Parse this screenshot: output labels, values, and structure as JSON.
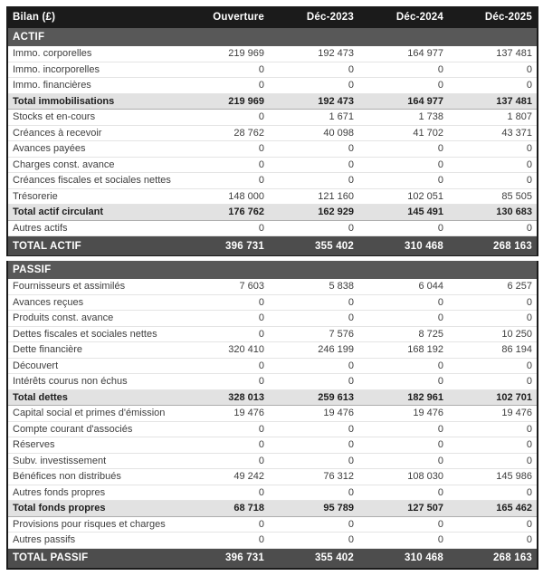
{
  "colors": {
    "header_bg": "#1b1b1b",
    "section_bg": "#585858",
    "grand_total_bg": "#4d4d4d",
    "subtotal_bg": "#e2e2e2",
    "row_text": "#3e3e3e",
    "outer_border": "#1b1b1b"
  },
  "table": {
    "title": "Bilan (£)",
    "columns": [
      "Ouverture",
      "Déc-2023",
      "Déc-2024",
      "Déc-2025"
    ],
    "sections": [
      {
        "title": "ACTIF",
        "rows": [
          {
            "label": "Immo. corporelles",
            "values": [
              "219 969",
              "192 473",
              "164 977",
              "137 481"
            ],
            "style": "normal"
          },
          {
            "label": "Immo. incorporelles",
            "values": [
              "0",
              "0",
              "0",
              "0"
            ],
            "style": "normal"
          },
          {
            "label": "Immo. financières",
            "values": [
              "0",
              "0",
              "0",
              "0"
            ],
            "style": "normal"
          },
          {
            "label": "Total immobilisations",
            "values": [
              "219 969",
              "192 473",
              "164 977",
              "137 481"
            ],
            "style": "subtotal"
          },
          {
            "label": "Stocks et en-cours",
            "values": [
              "0",
              "1 671",
              "1 738",
              "1 807"
            ],
            "style": "normal"
          },
          {
            "label": "Créances à recevoir",
            "values": [
              "28 762",
              "40 098",
              "41 702",
              "43 371"
            ],
            "style": "normal"
          },
          {
            "label": "Avances payées",
            "values": [
              "0",
              "0",
              "0",
              "0"
            ],
            "style": "normal"
          },
          {
            "label": "Charges const. avance",
            "values": [
              "0",
              "0",
              "0",
              "0"
            ],
            "style": "normal"
          },
          {
            "label": "Créances fiscales et sociales nettes",
            "values": [
              "0",
              "0",
              "0",
              "0"
            ],
            "style": "normal"
          },
          {
            "label": "Trésorerie",
            "values": [
              "148 000",
              "121 160",
              "102 051",
              "85 505"
            ],
            "style": "normal"
          },
          {
            "label": "Total actif circulant",
            "values": [
              "176 762",
              "162 929",
              "145 491",
              "130 683"
            ],
            "style": "subtotal"
          },
          {
            "label": "Autres actifs",
            "values": [
              "0",
              "0",
              "0",
              "0"
            ],
            "style": "normal"
          }
        ],
        "total": {
          "label": "TOTAL ACTIF",
          "values": [
            "396 731",
            "355 402",
            "310 468",
            "268 163"
          ]
        }
      },
      {
        "title": "PASSIF",
        "rows": [
          {
            "label": "Fournisseurs et assimilés",
            "values": [
              "7 603",
              "5 838",
              "6 044",
              "6 257"
            ],
            "style": "normal"
          },
          {
            "label": "Avances reçues",
            "values": [
              "0",
              "0",
              "0",
              "0"
            ],
            "style": "normal"
          },
          {
            "label": "Produits const. avance",
            "values": [
              "0",
              "0",
              "0",
              "0"
            ],
            "style": "normal"
          },
          {
            "label": "Dettes fiscales et sociales nettes",
            "values": [
              "0",
              "7 576",
              "8 725",
              "10 250"
            ],
            "style": "normal"
          },
          {
            "label": "Dette financière",
            "values": [
              "320 410",
              "246 199",
              "168 192",
              "86 194"
            ],
            "style": "normal"
          },
          {
            "label": "Découvert",
            "values": [
              "0",
              "0",
              "0",
              "0"
            ],
            "style": "normal"
          },
          {
            "label": "Intérêts courus non échus",
            "values": [
              "0",
              "0",
              "0",
              "0"
            ],
            "style": "normal"
          },
          {
            "label": "Total dettes",
            "values": [
              "328 013",
              "259 613",
              "182 961",
              "102 701"
            ],
            "style": "subtotal"
          },
          {
            "label": "Capital social et primes d'émission",
            "values": [
              "19 476",
              "19 476",
              "19 476",
              "19 476"
            ],
            "style": "normal"
          },
          {
            "label": "Compte courant d'associés",
            "values": [
              "0",
              "0",
              "0",
              "0"
            ],
            "style": "normal"
          },
          {
            "label": "Réserves",
            "values": [
              "0",
              "0",
              "0",
              "0"
            ],
            "style": "normal"
          },
          {
            "label": "Subv. investissement",
            "values": [
              "0",
              "0",
              "0",
              "0"
            ],
            "style": "normal"
          },
          {
            "label": "Bénéfices non distribués",
            "values": [
              "49 242",
              "76 312",
              "108 030",
              "145 986"
            ],
            "style": "normal"
          },
          {
            "label": "Autres fonds propres",
            "values": [
              "0",
              "0",
              "0",
              "0"
            ],
            "style": "normal"
          },
          {
            "label": "Total fonds propres",
            "values": [
              "68 718",
              "95 789",
              "127 507",
              "165 462"
            ],
            "style": "subtotal"
          },
          {
            "label": "Provisions pour risques et charges",
            "values": [
              "0",
              "0",
              "0",
              "0"
            ],
            "style": "normal"
          },
          {
            "label": "Autres passifs",
            "values": [
              "0",
              "0",
              "0",
              "0"
            ],
            "style": "normal"
          }
        ],
        "total": {
          "label": "TOTAL PASSIF",
          "values": [
            "396 731",
            "355 402",
            "310 468",
            "268 163"
          ]
        }
      }
    ]
  }
}
